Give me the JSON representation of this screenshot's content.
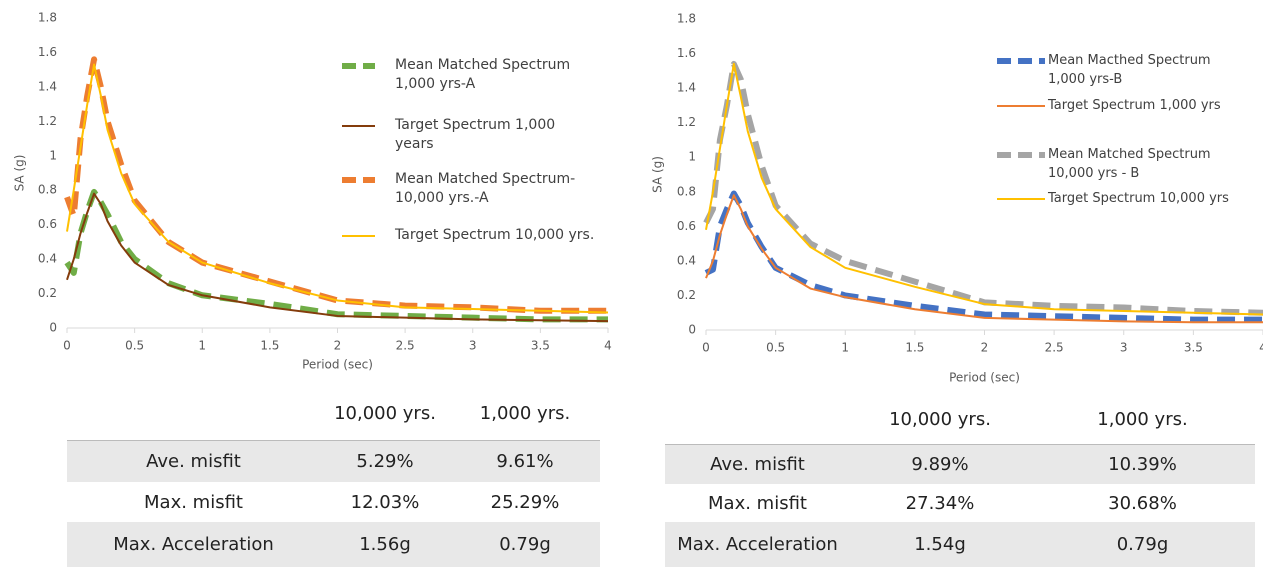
{
  "chart_data": [
    {
      "type": "line",
      "xlabel": "Period (sec)",
      "ylabel": "SA (g)",
      "x": [
        0,
        0.05,
        0.1,
        0.15,
        0.2,
        0.25,
        0.3,
        0.4,
        0.5,
        0.75,
        1,
        1.5,
        2,
        2.5,
        3,
        3.5,
        4
      ],
      "xlim": [
        0,
        4
      ],
      "xticks": [
        0,
        0.5,
        1,
        1.5,
        2,
        2.5,
        3,
        3.5,
        4
      ],
      "ylim": [
        0,
        1.8
      ],
      "yticks": [
        0,
        0.2,
        0.4,
        0.6,
        0.8,
        1,
        1.2,
        1.4,
        1.6,
        1.8
      ],
      "grid": false,
      "series": [
        {
          "name": "Mean Matched Spectrum 1,000 yrs-A",
          "color": "#70ad47",
          "style": "dashed",
          "values": [
            0.38,
            0.32,
            0.55,
            0.68,
            0.79,
            0.73,
            0.66,
            0.5,
            0.4,
            0.26,
            0.19,
            0.14,
            0.08,
            0.07,
            0.06,
            0.05,
            0.05
          ]
        },
        {
          "name": "Target Spectrum 1,000 years",
          "color": "#843c0c",
          "style": "solid",
          "values": [
            0.28,
            0.4,
            0.55,
            0.67,
            0.78,
            0.72,
            0.62,
            0.48,
            0.38,
            0.25,
            0.19,
            0.12,
            0.07,
            0.06,
            0.05,
            0.045,
            0.04
          ]
        },
        {
          "name": "Mean Matched Spectrum-10,000 yrs.-A",
          "color": "#ed7d31",
          "style": "dashed",
          "values": [
            0.76,
            0.65,
            1.1,
            1.35,
            1.56,
            1.4,
            1.2,
            0.95,
            0.74,
            0.5,
            0.38,
            0.27,
            0.16,
            0.13,
            0.12,
            0.1,
            0.1
          ]
        },
        {
          "name": "Target Spectrum 10,000 yrs.",
          "color": "#ffc000",
          "style": "solid",
          "values": [
            0.56,
            0.8,
            1.05,
            1.3,
            1.53,
            1.35,
            1.15,
            0.9,
            0.72,
            0.5,
            0.38,
            0.26,
            0.16,
            0.12,
            0.11,
            0.1,
            0.09
          ]
        }
      ]
    },
    {
      "type": "line",
      "xlabel": "Period (sec)",
      "ylabel": "SA (g)",
      "x": [
        0,
        0.05,
        0.1,
        0.15,
        0.2,
        0.25,
        0.3,
        0.4,
        0.5,
        0.75,
        1,
        1.5,
        2,
        2.5,
        3,
        3.5,
        4
      ],
      "xlim": [
        0,
        4
      ],
      "xticks": [
        0,
        0.5,
        1,
        1.5,
        2,
        2.5,
        3,
        3.5,
        4
      ],
      "ylim": [
        0,
        1.8
      ],
      "yticks": [
        0,
        0.2,
        0.4,
        0.6,
        0.8,
        1,
        1.2,
        1.4,
        1.6,
        1.8
      ],
      "grid": false,
      "series": [
        {
          "name": "Mean Macthed Spectrum 1,000 yrs-B",
          "color": "#4472c4",
          "style": "dashed",
          "values": [
            0.33,
            0.35,
            0.6,
            0.7,
            0.79,
            0.72,
            0.62,
            0.48,
            0.36,
            0.26,
            0.2,
            0.14,
            0.09,
            0.08,
            0.07,
            0.06,
            0.06
          ]
        },
        {
          "name": "Target Spectrum 1,000 yrs",
          "color": "#ed7d31",
          "style": "solid",
          "values": [
            0.3,
            0.4,
            0.55,
            0.67,
            0.78,
            0.7,
            0.6,
            0.47,
            0.36,
            0.24,
            0.19,
            0.12,
            0.07,
            0.06,
            0.05,
            0.045,
            0.045
          ]
        },
        {
          "name": "Mean Matched Spectrum 10,000 yrs - B",
          "color": "#a5a5a5",
          "style": "dashed",
          "values": [
            0.62,
            0.7,
            1.1,
            1.3,
            1.54,
            1.45,
            1.25,
            0.95,
            0.72,
            0.5,
            0.4,
            0.28,
            0.16,
            0.14,
            0.13,
            0.11,
            0.1
          ]
        },
        {
          "name": "Target Spectrum 10,000 yrs",
          "color": "#ffc000",
          "style": "solid",
          "values": [
            0.58,
            0.8,
            1.05,
            1.3,
            1.54,
            1.35,
            1.15,
            0.88,
            0.7,
            0.48,
            0.36,
            0.25,
            0.15,
            0.12,
            0.11,
            0.1,
            0.09
          ]
        }
      ]
    }
  ],
  "tables": [
    {
      "columns": [
        "10,000 yrs.",
        "1,000 yrs."
      ],
      "rows": [
        [
          "Ave. misfit",
          "5.29%",
          "9.61%"
        ],
        [
          "Max. misfit",
          "12.03%",
          "25.29%"
        ],
        [
          "Max. Acceleration",
          "1.56g",
          "0.79g"
        ]
      ]
    },
    {
      "columns": [
        "10,000 yrs.",
        "1,000 yrs."
      ],
      "rows": [
        [
          "Ave. misfit",
          "9.89%",
          "10.39%"
        ],
        [
          "Max. misfit",
          "27.34%",
          "30.68%"
        ],
        [
          "Max. Acceleration",
          "1.54g",
          "0.79g"
        ]
      ]
    }
  ]
}
